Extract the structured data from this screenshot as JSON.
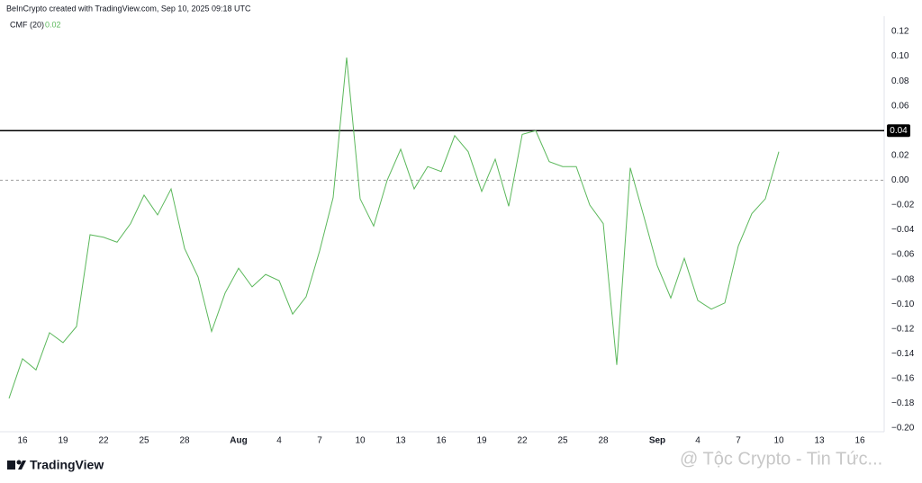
{
  "header": "BeInCrypto created with TradingView.com, Sep 10, 2025 09:18 UTC",
  "chart_data": {
    "type": "line",
    "legend_name": "CMF (20)",
    "legend_value": "0.02",
    "categories": [
      null,
      "16",
      null,
      null,
      "19",
      null,
      null,
      "22",
      null,
      null,
      "25",
      null,
      null,
      "28",
      null,
      null,
      null,
      "Aug",
      null,
      null,
      "4",
      null,
      null,
      "7",
      null,
      null,
      "10",
      null,
      null,
      "13",
      null,
      null,
      "16",
      null,
      null,
      "19",
      null,
      null,
      "22",
      null,
      null,
      "25",
      null,
      null,
      "28",
      null,
      null,
      null,
      "Sep",
      null,
      null,
      "4",
      null,
      null,
      "7",
      null,
      null,
      "10",
      null,
      null,
      "13",
      null,
      null,
      "16"
    ],
    "series": [
      {
        "name": "CMF (20)",
        "color": "#5cb85c",
        "values": [
          -0.176,
          -0.144,
          -0.153,
          -0.123,
          -0.131,
          -0.118,
          -0.044,
          -0.046,
          -0.05,
          -0.035,
          -0.012,
          -0.028,
          -0.007,
          -0.055,
          -0.078,
          -0.122,
          -0.091,
          -0.071,
          -0.086,
          -0.076,
          -0.081,
          -0.108,
          -0.094,
          -0.057,
          -0.014,
          0.099,
          -0.015,
          -0.037,
          0.0,
          0.025,
          -0.007,
          0.011,
          0.007,
          0.036,
          0.023,
          -0.009,
          0.017,
          -0.021,
          0.037,
          0.04,
          0.015,
          0.011,
          0.011,
          -0.02,
          -0.035,
          -0.149,
          0.01,
          -0.029,
          -0.069,
          -0.095,
          -0.063,
          -0.097,
          -0.104,
          -0.099,
          -0.053,
          -0.027,
          -0.015,
          0.023,
          null,
          null,
          null,
          null,
          null,
          null
        ]
      }
    ],
    "ylim": [
      -0.2,
      0.12
    ],
    "yticks": [
      0.12,
      {
        "value": 0.1,
        "label": "0.10"
      },
      0.08,
      0.06,
      0.04,
      0.02,
      {
        "value": 0,
        "label": "0.00"
      },
      {
        "value": -0.02,
        "label": "−0.02"
      },
      {
        "value": -0.04,
        "label": "−0.04"
      },
      {
        "value": -0.06,
        "label": "−0.06"
      },
      {
        "value": -0.08,
        "label": "−0.08"
      },
      {
        "value": -0.1,
        "label": "−0.10"
      },
      {
        "value": -0.12,
        "label": "−0.12"
      },
      {
        "value": -0.14,
        "label": "−0.14"
      },
      {
        "value": -0.16,
        "label": "−0.16"
      },
      {
        "value": -0.18,
        "label": "−0.18"
      },
      {
        "value": -0.2,
        "label": "−0.20"
      }
    ],
    "hline": {
      "value": 0.04,
      "label": "0.04",
      "color": "#000000"
    },
    "zero_line": {
      "value": 0,
      "color": "#9e9e9e"
    }
  },
  "footer": {
    "logo": "TradingView",
    "watermark": "@ Tộc Crypto - Tin Tức..."
  }
}
